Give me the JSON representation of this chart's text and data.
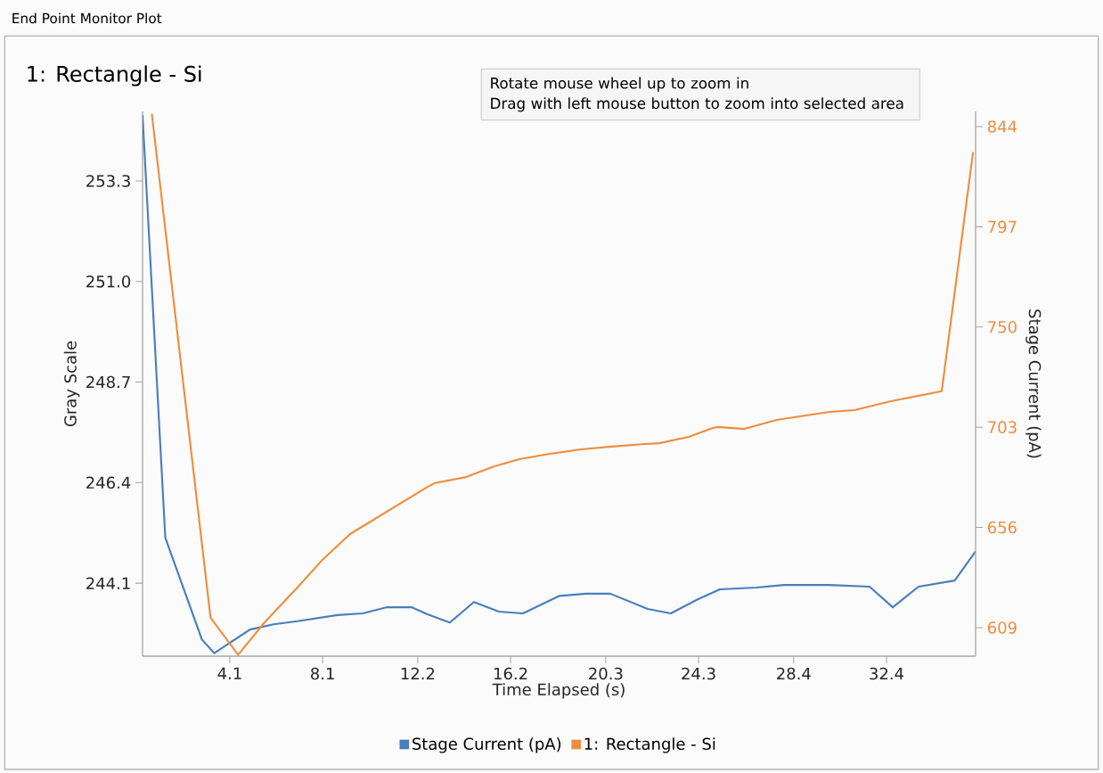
{
  "chart_data": {
    "type": "line",
    "title": "1: Rectangle - Si",
    "subtitle": "End Point Monitor Plot",
    "annotations": [
      "Rotate mouse wheel up to zoom in",
      "Drag with left mouse button to zoom into selected area"
    ],
    "xlabel": "Time Elapsed (s)",
    "ylabel": "Gray Scale",
    "y2label": "Stage Current (pA)",
    "xlim": [
      0.34,
      36.24
    ],
    "xticks": [
      4.1,
      8.1,
      12.2,
      16.2,
      20.3,
      24.3,
      28.4,
      32.4
    ],
    "ylim": [
      242.43,
      254.89
    ],
    "yticks": [
      244.1,
      246.4,
      248.7,
      {
        "value": 251.0,
        "label": "251.0"
      },
      253.3
    ],
    "y2lim": [
      595.6,
      851.1
    ],
    "y2ticks": [
      609,
      656,
      703,
      750,
      797,
      844
    ],
    "legend": "bottom",
    "marker": "none",
    "line_style": "solid",
    "grid": false,
    "series": [
      {
        "name": "Stage Current (pA)",
        "color": "#4a7ebb",
        "x": [
          0.34,
          1.32,
          2.9,
          3.43,
          4.97,
          5.98,
          7.01,
          8.73,
          9.82,
          10.88,
          11.93,
          12.62,
          13.58,
          14.62,
          15.7,
          16.73,
          18.31,
          19.46,
          20.5,
          22.11,
          23.11,
          24.26,
          25.22,
          26.79,
          27.98,
          29.94,
          31.67,
          32.67,
          33.78,
          35.34,
          36.24
        ],
        "values": [
          254.8,
          245.14,
          242.81,
          242.5,
          243.04,
          243.16,
          243.23,
          243.37,
          243.41,
          243.55,
          243.55,
          243.39,
          243.2,
          243.67,
          243.45,
          243.41,
          243.81,
          243.86,
          243.86,
          243.51,
          243.41,
          243.73,
          243.96,
          244.0,
          244.06,
          244.06,
          244.02,
          243.55,
          244.02,
          244.16,
          244.83
        ]
      },
      {
        "name": "1: Rectangle - Si",
        "color": "#ee8d3f",
        "axis": "y2",
        "x": [
          0.74,
          3.27,
          4.46,
          5.6,
          7.01,
          8.09,
          9.28,
          12.62,
          12.93,
          14.28,
          15.5,
          16.58,
          17.89,
          19.23,
          20.57,
          21.96,
          22.61,
          23.88,
          24.91,
          25.12,
          26.28,
          27.66,
          29.94,
          31.02,
          32.59,
          34.78,
          36.13
        ],
        "values": [
          850,
          613.6,
          596.3,
          611.5,
          627.8,
          640.8,
          652.9,
          675.0,
          676.8,
          679.6,
          684.7,
          688.0,
          690.5,
          692.6,
          693.9,
          695.1,
          695.5,
          698.5,
          702.6,
          703.1,
          702.2,
          706.4,
          710.2,
          711.0,
          715.2,
          719.9,
          832.0
        ]
      }
    ]
  }
}
